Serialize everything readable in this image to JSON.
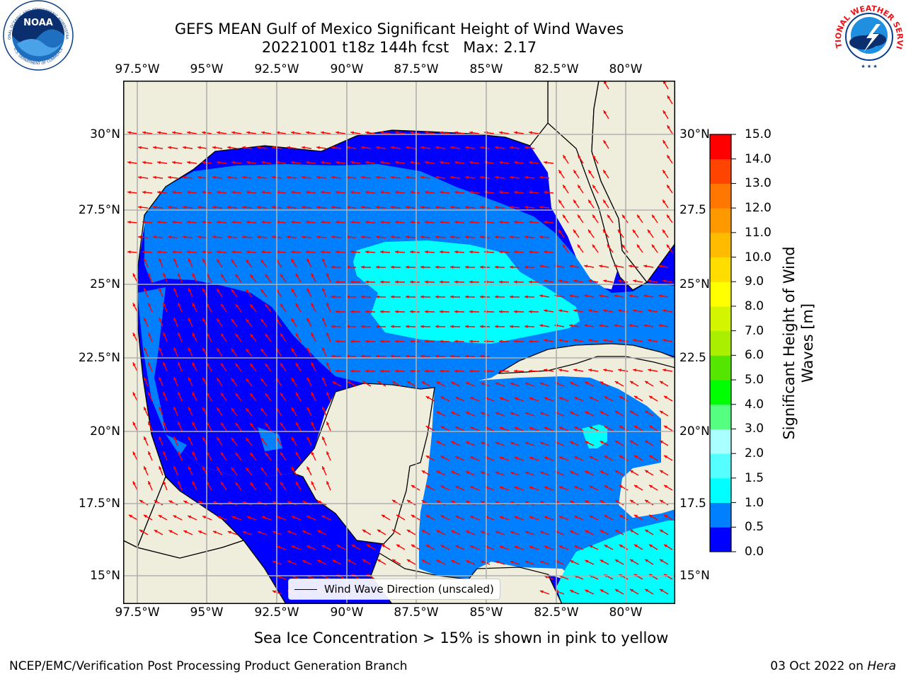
{
  "title": {
    "line1": "GEFS MEAN Gulf of Mexico Significant Height of Wind Waves",
    "line2": "20221001 t18z 144h fcst   Max: 2.17"
  },
  "map": {
    "lon_ticks": [
      "97.5°W",
      "95°W",
      "92.5°W",
      "90°W",
      "87.5°W",
      "85°W",
      "82.5°W",
      "80°W"
    ],
    "lat_ticks": [
      "30°N",
      "27.5°N",
      "25°N",
      "22.5°N",
      "20°N",
      "17.5°N",
      "15°N"
    ],
    "lat_ticks_right": [
      "30°N",
      "27.5",
      "25°N",
      "22.5",
      "20°N",
      "17.5",
      "15°N"
    ],
    "land_color": "#efeedc",
    "water_colors": {
      "dark": "#0000ff",
      "medium": "#0080ff",
      "light": "#00ffff"
    },
    "arrow_color": "#ff0000",
    "legend_label": "Wind Wave Direction (unscaled)"
  },
  "colorbar": {
    "label_line1": "Significant Height of Wind",
    "label_line2": "Waves [m]",
    "ticks": [
      "0.0",
      "0.5",
      "1.0",
      "1.5",
      "2.0",
      "3.0",
      "4.0",
      "5.0",
      "6.0",
      "7.0",
      "8.0",
      "9.0",
      "10.0",
      "11.0",
      "12.0",
      "13.0",
      "14.0",
      "15.0"
    ],
    "colors": [
      "#0000ff",
      "#0080ff",
      "#00ffff",
      "#55ffff",
      "#aaffff",
      "#55ff80",
      "#00ff00",
      "#55e600",
      "#aaee00",
      "#d4f500",
      "#ffff00",
      "#ffdd00",
      "#ffbb00",
      "#ff9900",
      "#ff7700",
      "#ff4400",
      "#ff0000"
    ]
  },
  "footnote": "Sea Ice Concentration > 15% is shown in pink to yellow",
  "credit": "NCEP/EMC/Verification Post Processing Product Generation Branch",
  "date": {
    "text": "03 Oct 2022 on ",
    "host": "Hera"
  },
  "logos": {
    "noaa_ring": "NATIONAL OCEANIC AND ATMOSPHERIC ADMINISTRATION",
    "noaa_word": "NOAA",
    "noaa_bottom": "U.S. DEPARTMENT OF COMMERCE",
    "nws_ring": "NATIONAL WEATHER SERVICE"
  }
}
